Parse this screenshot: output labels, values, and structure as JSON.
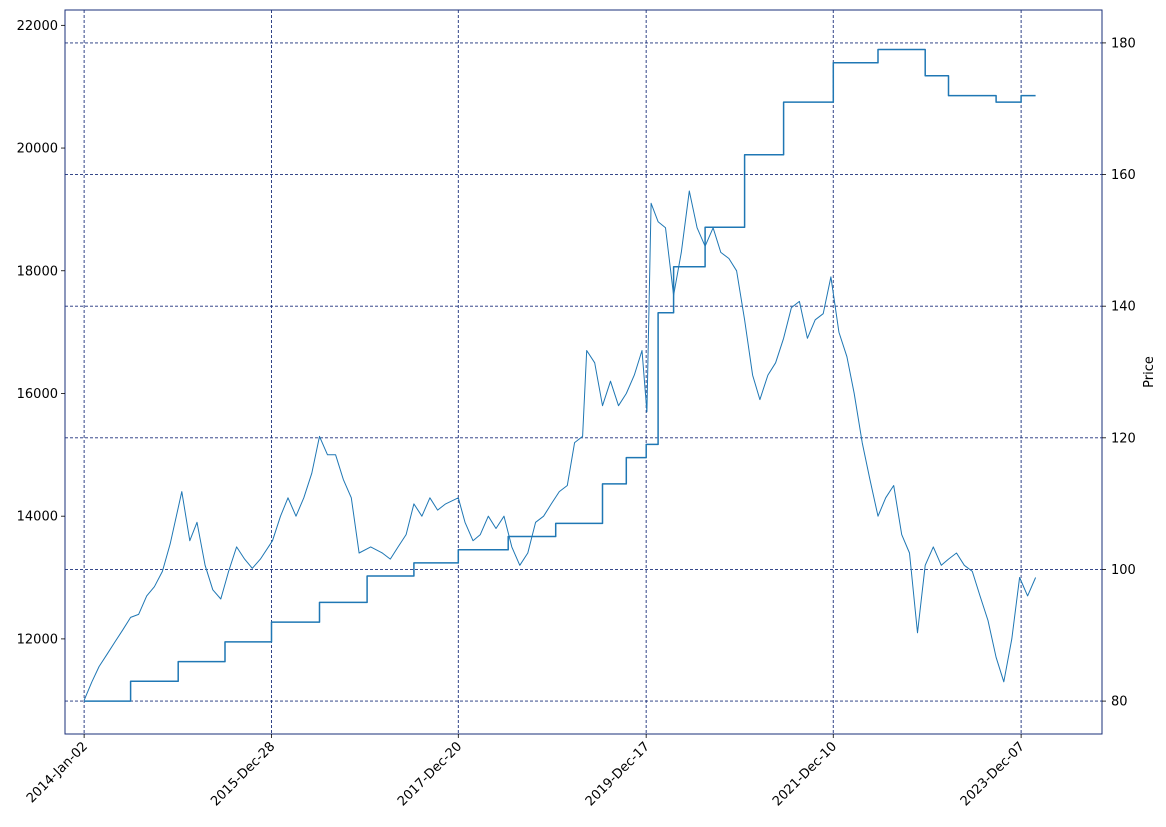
{
  "chart_data": {
    "type": "line",
    "title": "",
    "xlabel": "",
    "ylabel_left": "",
    "ylabel_right": "Price",
    "grid": true,
    "grid_color": "#1a2f7a",
    "frame_color": "#1a2f7a",
    "line_color": "#1f77b4",
    "x_ticks": [
      "2014-Jan-02",
      "2015-Dec-28",
      "2017-Dec-20",
      "2019-Dec-17",
      "2021-Dec-10",
      "2023-Dec-07"
    ],
    "x_range": [
      "2013-Oct-20",
      "2024-Oct-15"
    ],
    "y_left_ticks": [
      12000,
      14000,
      16000,
      18000,
      20000,
      22000
    ],
    "y_left_range": [
      10450,
      22250
    ],
    "y_right_ticks": [
      80,
      100,
      120,
      140,
      160,
      180
    ],
    "y_right_range": [
      75,
      185
    ],
    "series": [
      {
        "axis": "left",
        "values_date_value": [
          [
            "2014-01-02",
            11000
          ],
          [
            "2014-02-01",
            11300
          ],
          [
            "2014-03-01",
            11550
          ],
          [
            "2014-04-01",
            11750
          ],
          [
            "2014-05-01",
            11950
          ],
          [
            "2014-06-01",
            12150
          ],
          [
            "2014-07-01",
            12350
          ],
          [
            "2014-08-01",
            12400
          ],
          [
            "2014-09-01",
            12700
          ],
          [
            "2014-10-01",
            12850
          ],
          [
            "2014-11-01",
            13100
          ],
          [
            "2014-12-01",
            13550
          ],
          [
            "2015-01-15",
            14400
          ],
          [
            "2015-02-15",
            13600
          ],
          [
            "2015-03-15",
            13900
          ],
          [
            "2015-04-15",
            13200
          ],
          [
            "2015-05-15",
            12800
          ],
          [
            "2015-06-15",
            12650
          ],
          [
            "2015-07-15",
            13100
          ],
          [
            "2015-08-15",
            13500
          ],
          [
            "2015-09-15",
            13300
          ],
          [
            "2015-10-15",
            13150
          ],
          [
            "2015-11-15",
            13300
          ],
          [
            "2016-01-01",
            13600
          ],
          [
            "2016-02-01",
            14000
          ],
          [
            "2016-03-01",
            14300
          ],
          [
            "2016-04-01",
            14000
          ],
          [
            "2016-05-01",
            14300
          ],
          [
            "2016-06-01",
            14700
          ],
          [
            "2016-07-01",
            15300
          ],
          [
            "2016-08-01",
            15000
          ],
          [
            "2016-09-01",
            15000
          ],
          [
            "2016-10-01",
            14600
          ],
          [
            "2016-11-01",
            14300
          ],
          [
            "2016-12-01",
            13400
          ],
          [
            "2017-01-15",
            13500
          ],
          [
            "2017-03-01",
            13400
          ],
          [
            "2017-04-01",
            13300
          ],
          [
            "2017-05-01",
            13500
          ],
          [
            "2017-06-01",
            13700
          ],
          [
            "2017-07-01",
            14200
          ],
          [
            "2017-08-01",
            14000
          ],
          [
            "2017-09-01",
            14300
          ],
          [
            "2017-10-01",
            14100
          ],
          [
            "2017-11-01",
            14200
          ],
          [
            "2017-12-20",
            14300
          ],
          [
            "2018-01-15",
            13900
          ],
          [
            "2018-02-15",
            13600
          ],
          [
            "2018-03-15",
            13700
          ],
          [
            "2018-04-15",
            14000
          ],
          [
            "2018-05-15",
            13800
          ],
          [
            "2018-06-15",
            14000
          ],
          [
            "2018-07-15",
            13500
          ],
          [
            "2018-08-15",
            13200
          ],
          [
            "2018-09-15",
            13400
          ],
          [
            "2018-10-15",
            13900
          ],
          [
            "2018-11-15",
            14000
          ],
          [
            "2018-12-15",
            14200
          ],
          [
            "2019-01-15",
            14400
          ],
          [
            "2019-02-15",
            14500
          ],
          [
            "2019-03-15",
            15200
          ],
          [
            "2019-04-15",
            15300
          ],
          [
            "2019-05-01",
            16700
          ],
          [
            "2019-06-01",
            16500
          ],
          [
            "2019-07-01",
            15800
          ],
          [
            "2019-08-01",
            16200
          ],
          [
            "2019-09-01",
            15800
          ],
          [
            "2019-10-01",
            16000
          ],
          [
            "2019-11-01",
            16300
          ],
          [
            "2019-12-01",
            16700
          ],
          [
            "2019-12-20",
            15700
          ],
          [
            "2020-01-05",
            19100
          ],
          [
            "2020-02-01",
            18800
          ],
          [
            "2020-03-01",
            18700
          ],
          [
            "2020-04-01",
            17600
          ],
          [
            "2020-05-01",
            18300
          ],
          [
            "2020-06-01",
            19300
          ],
          [
            "2020-07-01",
            18700
          ],
          [
            "2020-08-01",
            18400
          ],
          [
            "2020-09-01",
            18700
          ],
          [
            "2020-10-01",
            18300
          ],
          [
            "2020-11-01",
            18200
          ],
          [
            "2020-12-01",
            18000
          ],
          [
            "2021-01-01",
            17200
          ],
          [
            "2021-02-01",
            16300
          ],
          [
            "2021-03-01",
            15900
          ],
          [
            "2021-04-01",
            16300
          ],
          [
            "2021-05-01",
            16500
          ],
          [
            "2021-06-01",
            16900
          ],
          [
            "2021-07-01",
            17400
          ],
          [
            "2021-08-01",
            17500
          ],
          [
            "2021-09-01",
            16900
          ],
          [
            "2021-10-01",
            17200
          ],
          [
            "2021-11-01",
            17300
          ],
          [
            "2021-12-01",
            17900
          ],
          [
            "2022-01-01",
            17000
          ],
          [
            "2022-02-01",
            16600
          ],
          [
            "2022-03-01",
            16000
          ],
          [
            "2022-04-01",
            15200
          ],
          [
            "2022-05-01",
            14600
          ],
          [
            "2022-06-01",
            14000
          ],
          [
            "2022-07-01",
            14300
          ],
          [
            "2022-08-01",
            14500
          ],
          [
            "2022-09-01",
            13700
          ],
          [
            "2022-10-01",
            13400
          ],
          [
            "2022-11-01",
            12100
          ],
          [
            "2022-12-01",
            13200
          ],
          [
            "2023-01-01",
            13500
          ],
          [
            "2023-02-01",
            13200
          ],
          [
            "2023-03-01",
            13300
          ],
          [
            "2023-04-01",
            13400
          ],
          [
            "2023-05-01",
            13200
          ],
          [
            "2023-06-01",
            13100
          ],
          [
            "2023-07-01",
            12700
          ],
          [
            "2023-08-01",
            12300
          ],
          [
            "2023-09-01",
            11700
          ],
          [
            "2023-10-01",
            11300
          ],
          [
            "2023-11-01",
            12000
          ],
          [
            "2023-12-01",
            13000
          ],
          [
            "2024-01-01",
            12700
          ],
          [
            "2024-02-01",
            13000
          ]
        ]
      },
      {
        "axis": "right",
        "values_date_value": [
          [
            "2014-01-02",
            80
          ],
          [
            "2014-07-01",
            83
          ],
          [
            "2015-01-01",
            86
          ],
          [
            "2015-07-01",
            89
          ],
          [
            "2015-12-28",
            92
          ],
          [
            "2016-07-01",
            95
          ],
          [
            "2017-01-01",
            99
          ],
          [
            "2017-07-01",
            101
          ],
          [
            "2017-12-20",
            103
          ],
          [
            "2018-07-01",
            105
          ],
          [
            "2019-01-01",
            107
          ],
          [
            "2019-07-01",
            113
          ],
          [
            "2019-10-01",
            117
          ],
          [
            "2019-12-17",
            119
          ],
          [
            "2020-02-01",
            139
          ],
          [
            "2020-04-01",
            146
          ],
          [
            "2020-08-01",
            152
          ],
          [
            "2021-01-01",
            163
          ],
          [
            "2021-06-01",
            171
          ],
          [
            "2021-12-10",
            177
          ],
          [
            "2022-06-01",
            179
          ],
          [
            "2022-09-01",
            179
          ],
          [
            "2022-12-01",
            175
          ],
          [
            "2023-03-01",
            172
          ],
          [
            "2023-06-01",
            172
          ],
          [
            "2023-09-01",
            171
          ],
          [
            "2023-12-07",
            172
          ],
          [
            "2024-02-01",
            172
          ]
        ]
      }
    ]
  }
}
